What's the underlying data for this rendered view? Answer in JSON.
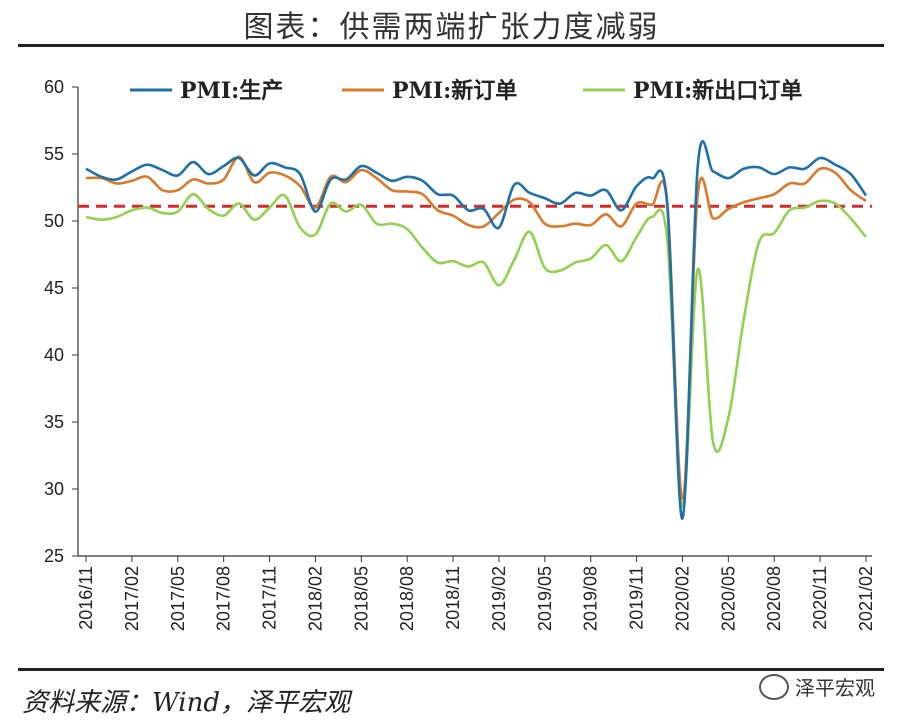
{
  "title": "图表：供需两端扩张力度减弱",
  "source": "资料来源：Wind，泽平宏观",
  "watermark": "泽平宏观",
  "chart_data": {
    "type": "line",
    "title": "图表：供需两端扩张力度减弱",
    "ylim": [
      25,
      60
    ],
    "yticks": [
      25,
      30,
      35,
      40,
      45,
      50,
      55,
      60
    ],
    "xtick_labels": [
      "2016/11",
      "2017/02",
      "2017/05",
      "2017/08",
      "2017/11",
      "2018/02",
      "2018/05",
      "2018/08",
      "2018/11",
      "2019/02",
      "2019/05",
      "2019/08",
      "2019/11",
      "2020/02",
      "2020/05",
      "2020/08",
      "2020/11",
      "2021/02"
    ],
    "x": [
      "2016/11",
      "2016/12",
      "2017/01",
      "2017/02",
      "2017/03",
      "2017/04",
      "2017/05",
      "2017/06",
      "2017/07",
      "2017/08",
      "2017/09",
      "2017/10",
      "2017/11",
      "2017/12",
      "2018/01",
      "2018/02",
      "2018/03",
      "2018/04",
      "2018/05",
      "2018/06",
      "2018/07",
      "2018/08",
      "2018/09",
      "2018/10",
      "2018/11",
      "2018/12",
      "2019/01",
      "2019/02",
      "2019/03",
      "2019/04",
      "2019/05",
      "2019/06",
      "2019/07",
      "2019/08",
      "2019/09",
      "2019/10",
      "2019/11",
      "2019/12",
      "2020/01",
      "2020/02",
      "2020/03",
      "2020/04",
      "2020/05",
      "2020/06",
      "2020/07",
      "2020/08",
      "2020/09",
      "2020/10",
      "2020/11",
      "2020/12",
      "2021/01",
      "2021/02"
    ],
    "reference_line": 51.1,
    "legend_position": "top",
    "series": [
      {
        "name": "PMI:生产",
        "color": "#1f6fa8",
        "values": [
          53.9,
          53.3,
          53.1,
          53.7,
          54.2,
          53.8,
          53.4,
          54.4,
          53.5,
          54.1,
          54.7,
          53.4,
          54.3,
          54.0,
          53.5,
          50.7,
          53.1,
          53.1,
          54.1,
          53.6,
          53.0,
          53.3,
          53.0,
          52.0,
          51.9,
          50.8,
          50.9,
          49.5,
          52.7,
          52.1,
          51.7,
          51.3,
          52.1,
          51.9,
          52.3,
          50.8,
          52.6,
          53.2,
          51.3,
          27.8,
          54.1,
          53.7,
          53.2,
          53.9,
          54.0,
          53.5,
          54.0,
          53.9,
          54.7,
          54.2,
          53.5,
          51.9
        ]
      },
      {
        "name": "PMI:新订单",
        "color": "#d97a2b",
        "values": [
          53.2,
          53.2,
          52.8,
          53.0,
          53.3,
          52.3,
          52.3,
          53.1,
          52.8,
          53.1,
          54.8,
          52.9,
          53.6,
          53.4,
          52.6,
          51.0,
          53.3,
          52.9,
          53.8,
          53.2,
          52.3,
          52.2,
          52.0,
          50.8,
          50.4,
          49.7,
          49.6,
          50.6,
          51.6,
          51.4,
          49.8,
          49.6,
          49.8,
          49.7,
          50.5,
          49.6,
          51.3,
          51.2,
          51.4,
          29.3,
          52.0,
          50.2,
          50.9,
          51.4,
          51.7,
          52.0,
          52.8,
          52.8,
          53.9,
          53.6,
          52.3,
          51.5
        ]
      },
      {
        "name": "PMI:新出口订单",
        "color": "#92d050",
        "values": [
          50.3,
          50.1,
          50.3,
          50.8,
          51.0,
          50.6,
          50.7,
          52.0,
          50.9,
          50.4,
          51.3,
          50.1,
          51.0,
          51.9,
          49.5,
          49.0,
          51.3,
          50.7,
          51.2,
          49.8,
          49.8,
          49.4,
          48.0,
          46.9,
          47.0,
          46.6,
          46.9,
          45.2,
          47.1,
          49.2,
          46.5,
          46.3,
          46.9,
          47.2,
          48.2,
          47.0,
          48.8,
          50.3,
          48.7,
          28.7,
          46.4,
          33.5,
          35.3,
          42.6,
          48.4,
          49.1,
          50.8,
          51.0,
          51.5,
          51.3,
          50.2,
          48.8
        ]
      }
    ]
  }
}
